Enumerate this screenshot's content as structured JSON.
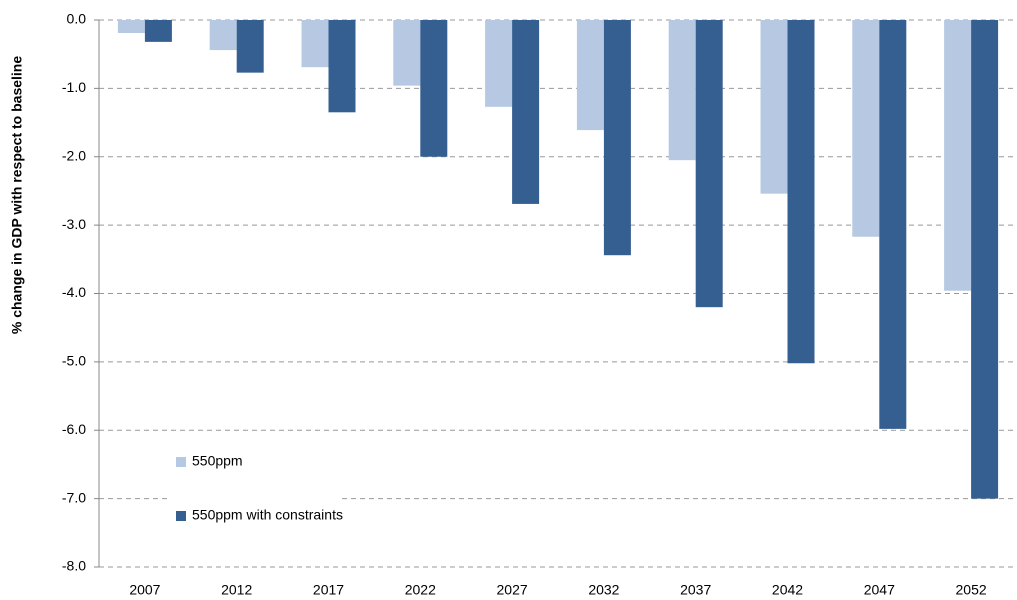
{
  "chart_data": {
    "type": "bar",
    "y_label": "% change in GDP with respect to baseline",
    "categories": [
      "2007",
      "2012",
      "2017",
      "2022",
      "2027",
      "2032",
      "2037",
      "2042",
      "2047",
      "2052"
    ],
    "series": [
      {
        "name": "550ppm",
        "color": "#b7c9e2",
        "values": [
          -0.19,
          -0.44,
          -0.69,
          -0.96,
          -1.27,
          -1.61,
          -2.05,
          -2.54,
          -3.17,
          -3.96
        ]
      },
      {
        "name": "550ppm with constraints",
        "color": "#365f91",
        "values": [
          -0.32,
          -0.77,
          -1.35,
          -2.0,
          -2.69,
          -3.44,
          -4.2,
          -5.02,
          -5.98,
          -7.0
        ]
      }
    ],
    "ylim": [
      -8,
      0
    ],
    "yticks": [
      {
        "value": 0,
        "label": "0.0"
      },
      {
        "value": -1,
        "label": "-1.0"
      },
      {
        "value": -2,
        "label": "-2.0"
      },
      {
        "value": -3,
        "label": "-3.0"
      },
      {
        "value": -4,
        "label": "-4.0"
      },
      {
        "value": -5,
        "label": "-5.0"
      },
      {
        "value": -6,
        "label": "-6.0"
      },
      {
        "value": -7,
        "label": "-7.0"
      },
      {
        "value": -8,
        "label": "-8.0"
      }
    ],
    "grid": true,
    "legend": "lower-left"
  }
}
